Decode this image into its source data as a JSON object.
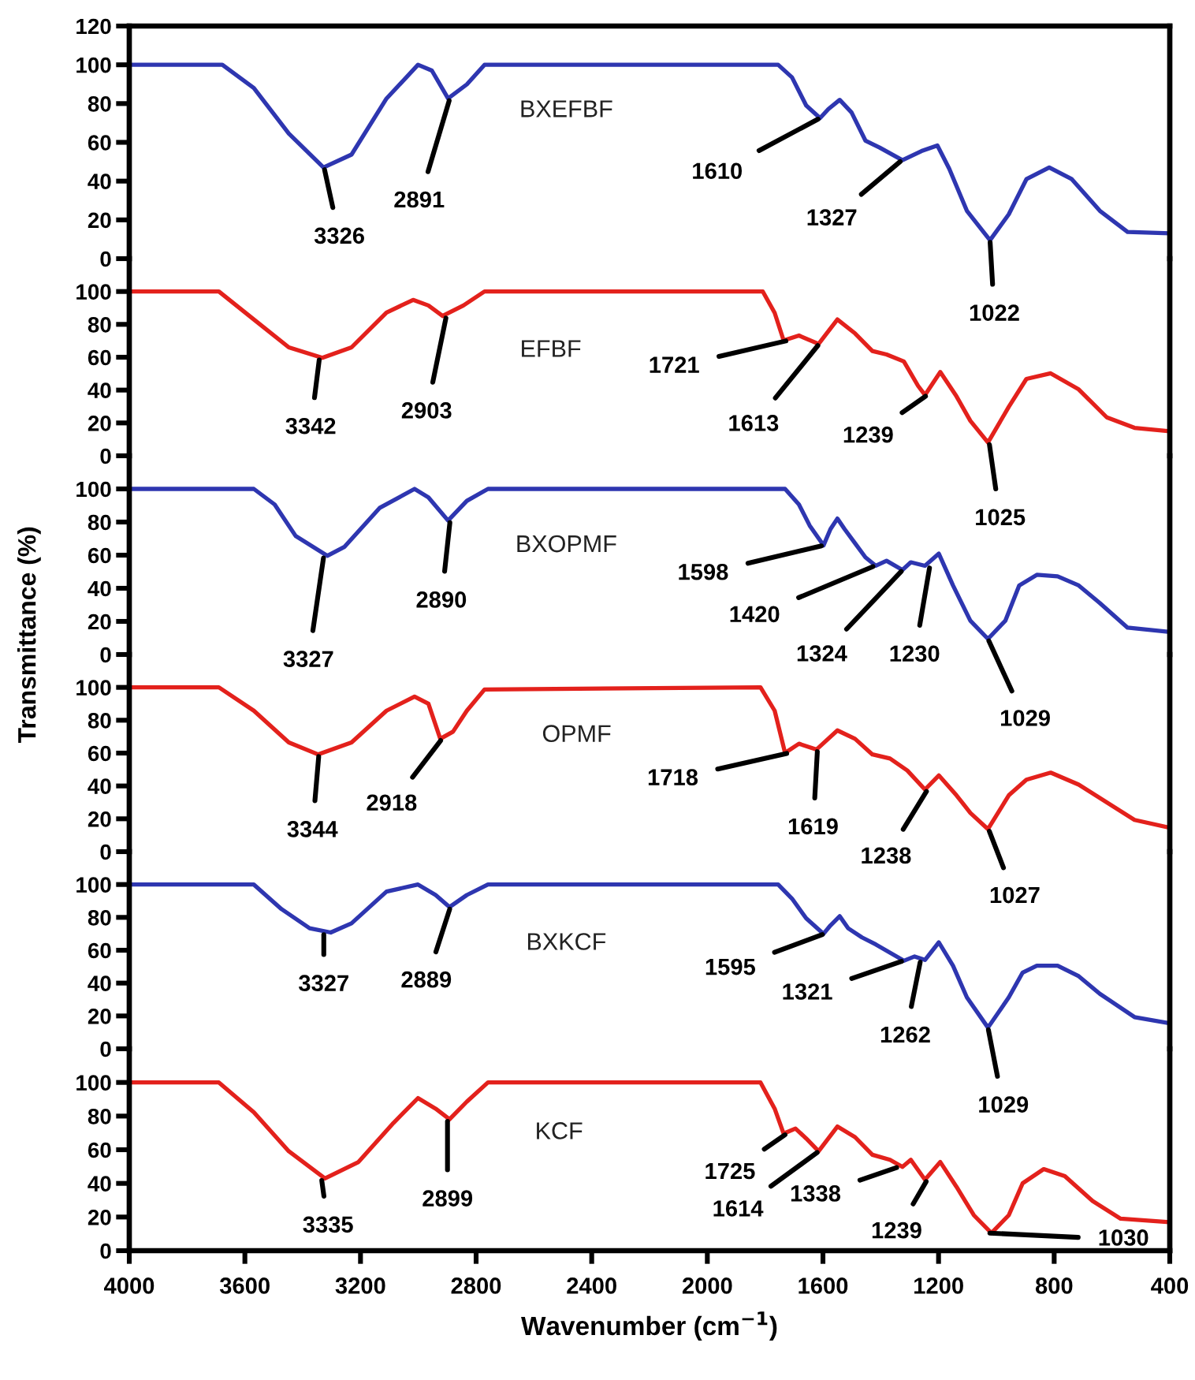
{
  "chart_data": [
    {
      "type": "line",
      "xlim": [
        4000,
        400
      ],
      "ylim": [
        0,
        120
      ],
      "yticks": [
        0,
        20,
        40,
        60,
        80,
        100,
        120
      ],
      "tick_labels": "y",
      "series": [
        {
          "name": "BXEFBF",
          "color": "#2e36b0",
          "x": [
            4000,
            3678,
            3569,
            3448,
            3328,
            3231,
            3110,
            3001,
            2953,
            2897,
            2832,
            2771,
            1755,
            1707,
            1658,
            1610,
            1581,
            1542,
            1501,
            1453,
            1404,
            1325,
            1259,
            1204,
            1163,
            1102,
            1022,
            957,
            896,
            817,
            739,
            642,
            546,
            400
          ],
          "values": [
            100,
            100,
            88,
            64.5,
            47,
            53.7,
            82.6,
            100,
            97,
            82.6,
            89.9,
            100,
            100,
            93.5,
            79,
            72.5,
            77.2,
            81.9,
            75.4,
            60.9,
            57.3,
            50.8,
            55.5,
            58.4,
            46.4,
            24.7,
            9.5,
            22.9,
            41,
            47,
            41,
            24.7,
            13.8,
            13.1
          ]
        }
      ],
      "annotations": [
        {
          "text": "3326",
          "x": 3326,
          "y": 47
        },
        {
          "text": "2891",
          "x": 2891,
          "y": 82.6
        },
        {
          "text": "1610",
          "x": 1610,
          "y": 72.5
        },
        {
          "text": "1327",
          "x": 1327,
          "y": 50.8
        },
        {
          "text": "1022",
          "x": 1022,
          "y": 9.5
        }
      ]
    },
    {
      "type": "line",
      "xlim": [
        4000,
        400
      ],
      "ylim": [
        0,
        120
      ],
      "yticks": [
        0,
        20,
        40,
        60,
        80,
        100
      ],
      "tick_labels": "y",
      "series": [
        {
          "name": "EFBF",
          "color": "#e3211c",
          "x": [
            4000,
            3690,
            3569,
            3448,
            3332,
            3231,
            3110,
            3018,
            2965,
            2916,
            2844,
            2771,
            1808,
            1767,
            1736,
            1683,
            1615,
            1550,
            1489,
            1429,
            1380,
            1320,
            1271,
            1247,
            1194,
            1138,
            1090,
            1029,
            957,
            896,
            812,
            715,
            618,
            522,
            400
          ],
          "values": [
            100,
            100,
            83,
            66,
            59.6,
            66,
            87.2,
            94.9,
            91.5,
            85.1,
            91.5,
            100,
            100,
            87,
            70.2,
            73.2,
            68.1,
            83,
            74.5,
            63.8,
            61.7,
            57.4,
            42.6,
            37,
            51,
            36.2,
            21.3,
            8.1,
            29.8,
            46.8,
            50.2,
            40.4,
            23.4,
            17,
            14.9
          ]
        }
      ],
      "annotations": [
        {
          "text": "3342",
          "x": 3342,
          "y": 59.6
        },
        {
          "text": "2903",
          "x": 2903,
          "y": 85.1
        },
        {
          "text": "1721",
          "x": 1721,
          "y": 70.2
        },
        {
          "text": "1613",
          "x": 1613,
          "y": 68.1
        },
        {
          "text": "1239",
          "x": 1239,
          "y": 37
        },
        {
          "text": "1025",
          "x": 1025,
          "y": 8.1
        }
      ]
    },
    {
      "type": "line",
      "xlim": [
        4000,
        400
      ],
      "ylim": [
        0,
        120
      ],
      "yticks": [
        0,
        20,
        40,
        60,
        80,
        100
      ],
      "tick_labels": "y",
      "ylabel": "Transmittance (%)",
      "series": [
        {
          "name": "BXOPMF",
          "color": "#2e36b0",
          "x": [
            4000,
            3569,
            3497,
            3424,
            3315,
            3255,
            3134,
            3013,
            2965,
            2897,
            2832,
            2759,
            1731,
            1683,
            1646,
            1598,
            1574,
            1550,
            1525,
            1489,
            1453,
            1417,
            1380,
            1325,
            1296,
            1247,
            1199,
            1150,
            1090,
            1029,
            969,
            921,
            860,
            788,
            715,
            642,
            546,
            400
          ],
          "values": [
            100,
            100,
            90.6,
            71.5,
            59.6,
            65.1,
            88.5,
            100,
            94.9,
            80.9,
            92.8,
            100,
            100,
            90.6,
            77.9,
            65.9,
            75.7,
            82.1,
            75.7,
            67.2,
            58.7,
            53.6,
            56.6,
            51.1,
            55.7,
            53.6,
            60.9,
            41.7,
            20.4,
            9.4,
            20.4,
            41.7,
            48.1,
            47.2,
            41.7,
            31.1,
            16.2,
            13.6
          ]
        }
      ],
      "annotations": [
        {
          "text": "3327",
          "x": 3327,
          "y": 59.6
        },
        {
          "text": "2890",
          "x": 2890,
          "y": 80.9
        },
        {
          "text": "1598",
          "x": 1598,
          "y": 65.9
        },
        {
          "text": "1420",
          "x": 1420,
          "y": 53.6
        },
        {
          "text": "1324",
          "x": 1324,
          "y": 51.1
        },
        {
          "text": "1230",
          "x": 1230,
          "y": 53.6
        },
        {
          "text": "1029",
          "x": 1029,
          "y": 9.4
        }
      ]
    },
    {
      "type": "line",
      "xlim": [
        4000,
        400
      ],
      "ylim": [
        0,
        120
      ],
      "yticks": [
        0,
        20,
        40,
        60,
        80,
        100
      ],
      "tick_labels": "y",
      "series": [
        {
          "name": "OPMF",
          "color": "#e3211c",
          "x": [
            4000,
            3690,
            3569,
            3448,
            3347,
            3231,
            3110,
            3013,
            2965,
            2924,
            2880,
            2832,
            2771,
            1816,
            1767,
            1731,
            1683,
            1622,
            1550,
            1489,
            1429,
            1368,
            1308,
            1247,
            1199,
            1138,
            1090,
            1029,
            957,
            896,
            812,
            715,
            618,
            522,
            400
          ],
          "values": [
            100,
            100,
            85.8,
            66.5,
            59.2,
            66.5,
            85.8,
            94.4,
            90.1,
            68.7,
            73,
            85.8,
            98.7,
            100,
            85.8,
            60.1,
            65.7,
            62.2,
            73.8,
            68.7,
            59.2,
            56.7,
            49.4,
            37.8,
            46.4,
            34.3,
            23.6,
            13.7,
            34.3,
            43.8,
            48.1,
            40.8,
            30,
            19.3,
            14.6
          ]
        }
      ],
      "annotations": [
        {
          "text": "3344",
          "x": 3344,
          "y": 59.2
        },
        {
          "text": "2918",
          "x": 2918,
          "y": 68.7
        },
        {
          "text": "1718",
          "x": 1718,
          "y": 60.1
        },
        {
          "text": "1619",
          "x": 1619,
          "y": 62.2
        },
        {
          "text": "1238",
          "x": 1238,
          "y": 37.8
        },
        {
          "text": "1027",
          "x": 1027,
          "y": 13.7
        }
      ]
    },
    {
      "type": "line",
      "xlim": [
        4000,
        400
      ],
      "ylim": [
        0,
        120
      ],
      "yticks": [
        0,
        20,
        40,
        60,
        80,
        100
      ],
      "tick_labels": "y",
      "series": [
        {
          "name": "BXKCF",
          "color": "#2e36b0",
          "x": [
            4000,
            3569,
            3473,
            3376,
            3303,
            3231,
            3110,
            3001,
            2940,
            2892,
            2832,
            2759,
            1755,
            1707,
            1658,
            1598,
            1574,
            1542,
            1513,
            1465,
            1417,
            1320,
            1283,
            1247,
            1199,
            1150,
            1102,
            1029,
            957,
            909,
            860,
            788,
            715,
            642,
            522,
            400
          ],
          "values": [
            100,
            100,
            85,
            73.4,
            70.8,
            76.4,
            95.7,
            100,
            93.6,
            86.3,
            93.6,
            100,
            100,
            91.4,
            79.4,
            70,
            75.1,
            80.7,
            73.4,
            67.8,
            63.5,
            53.6,
            56.2,
            54.1,
            64.8,
            50.6,
            31.3,
            12.9,
            31.3,
            46.4,
            50.6,
            50.6,
            44.2,
            33.5,
            19.3,
            15.5
          ]
        }
      ],
      "annotations": [
        {
          "text": "3327",
          "x": 3327,
          "y": 70.8
        },
        {
          "text": "2889",
          "x": 2889,
          "y": 86.3
        },
        {
          "text": "1595",
          "x": 1595,
          "y": 70
        },
        {
          "text": "1321",
          "x": 1321,
          "y": 53.6
        },
        {
          "text": "1262",
          "x": 1262,
          "y": 54.1
        },
        {
          "text": "1029",
          "x": 1029,
          "y": 12.9
        }
      ]
    },
    {
      "type": "line",
      "xlim": [
        4000,
        400
      ],
      "xticks": [
        4000,
        3600,
        3200,
        2800,
        2400,
        2000,
        1600,
        1200,
        800,
        400
      ],
      "ylim": [
        0,
        120
      ],
      "yticks": [
        0,
        20,
        40,
        60,
        80,
        100
      ],
      "xlabel": "Wavenumber (cm$^{−1}$)",
      "series": [
        {
          "name": "KCF",
          "color": "#e3211c",
          "x": [
            4000,
            3690,
            3569,
            3448,
            3323,
            3207,
            3086,
            3001,
            2940,
            2892,
            2832,
            2759,
            1816,
            1767,
            1736,
            1695,
            1658,
            1615,
            1550,
            1489,
            1429,
            1368,
            1325,
            1296,
            1247,
            1194,
            1138,
            1078,
            1017,
            957,
            909,
            836,
            763,
            667,
            570,
            400
          ],
          "values": [
            100,
            100,
            82.3,
            59.1,
            43,
            52.7,
            75.9,
            90.7,
            84.4,
            78.1,
            88.6,
            100,
            100,
            84.4,
            69.6,
            72.6,
            66.7,
            59.1,
            73.8,
            67.5,
            57,
            54,
            49.8,
            54,
            42.2,
            52.7,
            38,
            21.1,
            10.5,
            21.1,
            40.1,
            48.5,
            44.3,
            29.5,
            19,
            16.9
          ]
        }
      ],
      "annotations": [
        {
          "text": "3335",
          "x": 3335,
          "y": 43
        },
        {
          "text": "2899",
          "x": 2899,
          "y": 78.1
        },
        {
          "text": "1725",
          "x": 1725,
          "y": 69.6
        },
        {
          "text": "1614",
          "x": 1614,
          "y": 59.1
        },
        {
          "text": "1338",
          "x": 1338,
          "y": 49.8
        },
        {
          "text": "1239",
          "x": 1239,
          "y": 42.2
        },
        {
          "text": "1030",
          "x": 1030,
          "y": 10.5
        }
      ]
    }
  ]
}
